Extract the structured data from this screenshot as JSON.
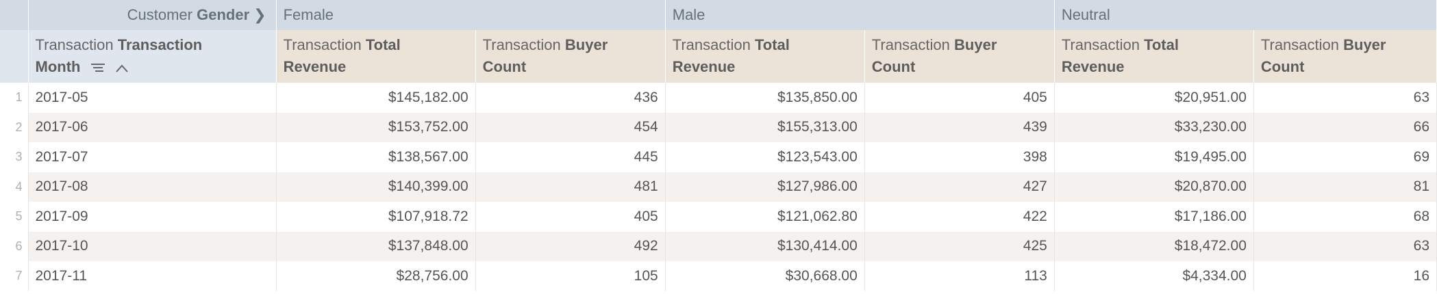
{
  "pivot": {
    "label_prefix": "Customer",
    "label_bold": "Gender",
    "groups": [
      "Female",
      "Male",
      "Neutral"
    ]
  },
  "headers": {
    "month": {
      "prefix": "Transaction",
      "bold_line1": "Transaction",
      "line2": "Month"
    },
    "revenue": {
      "prefix": "Transaction",
      "bold": "Total",
      "line2": "Revenue"
    },
    "count": {
      "prefix": "Transaction",
      "bold": "Buyer",
      "line2": "Count"
    }
  },
  "rows": [
    {
      "index": "1",
      "month": "2017-05",
      "values": [
        "$145,182.00",
        "436",
        "$135,850.00",
        "405",
        "$20,951.00",
        "63"
      ]
    },
    {
      "index": "2",
      "month": "2017-06",
      "values": [
        "$153,752.00",
        "454",
        "$155,313.00",
        "439",
        "$33,230.00",
        "66"
      ]
    },
    {
      "index": "3",
      "month": "2017-07",
      "values": [
        "$138,567.00",
        "445",
        "$123,543.00",
        "398",
        "$19,495.00",
        "69"
      ]
    },
    {
      "index": "4",
      "month": "2017-08",
      "values": [
        "$140,399.00",
        "481",
        "$127,986.00",
        "427",
        "$20,870.00",
        "81"
      ]
    },
    {
      "index": "5",
      "month": "2017-09",
      "values": [
        "$107,918.72",
        "405",
        "$121,062.80",
        "422",
        "$17,186.00",
        "68"
      ]
    },
    {
      "index": "6",
      "month": "2017-10",
      "values": [
        "$137,848.00",
        "492",
        "$130,414.00",
        "425",
        "$18,472.00",
        "63"
      ]
    },
    {
      "index": "7",
      "month": "2017-11",
      "values": [
        "$28,756.00",
        "105",
        "$30,668.00",
        "113",
        "$4,334.00",
        "16"
      ]
    }
  ],
  "icons": {
    "pivot_arrow": "chevron-right-icon",
    "sort_filter": "sort-lines-icon",
    "sort_dir": "chevron-up-icon"
  },
  "colors": {
    "pivot_bg": "#d2dae3",
    "dim_header_bg": "#dfe6ee",
    "measure_header_bg": "#ece3d8",
    "stripe_bg": "#f4f1ee"
  }
}
